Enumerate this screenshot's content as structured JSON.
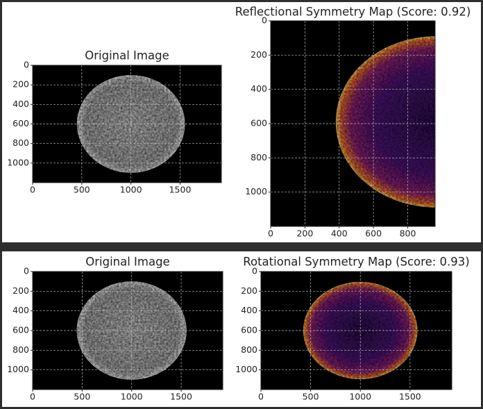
{
  "chart_data": [
    {
      "type": "image",
      "title": "Original Image",
      "xlim": [
        0,
        1920
      ],
      "ylim": [
        1200,
        0
      ],
      "xticks": [
        0,
        500,
        1000,
        1500
      ],
      "yticks": [
        0,
        200,
        400,
        600,
        800,
        1000
      ],
      "grid": true
    },
    {
      "type": "image",
      "title": "Reflectional Symmetry Map (Score: 0.92)",
      "xlim": [
        0,
        960
      ],
      "ylim": [
        1200,
        0
      ],
      "xticks": [
        0,
        200,
        400,
        600,
        800
      ],
      "yticks": [
        0,
        200,
        400,
        600,
        800,
        1000
      ],
      "grid": true
    },
    {
      "type": "image",
      "title": "Original Image",
      "xlim": [
        0,
        1920
      ],
      "ylim": [
        1200,
        0
      ],
      "xticks": [
        0,
        500,
        1000,
        1500
      ],
      "yticks": [
        0,
        200,
        400,
        600,
        800,
        1000
      ],
      "grid": true
    },
    {
      "type": "image",
      "title": "Rotational Symmetry Map (Score: 0.93)",
      "xlim": [
        0,
        1920
      ],
      "ylim": [
        1200,
        0
      ],
      "xticks": [
        0,
        500,
        1000,
        1500
      ],
      "yticks": [
        0,
        200,
        400,
        600,
        800,
        1000
      ],
      "grid": true
    }
  ]
}
